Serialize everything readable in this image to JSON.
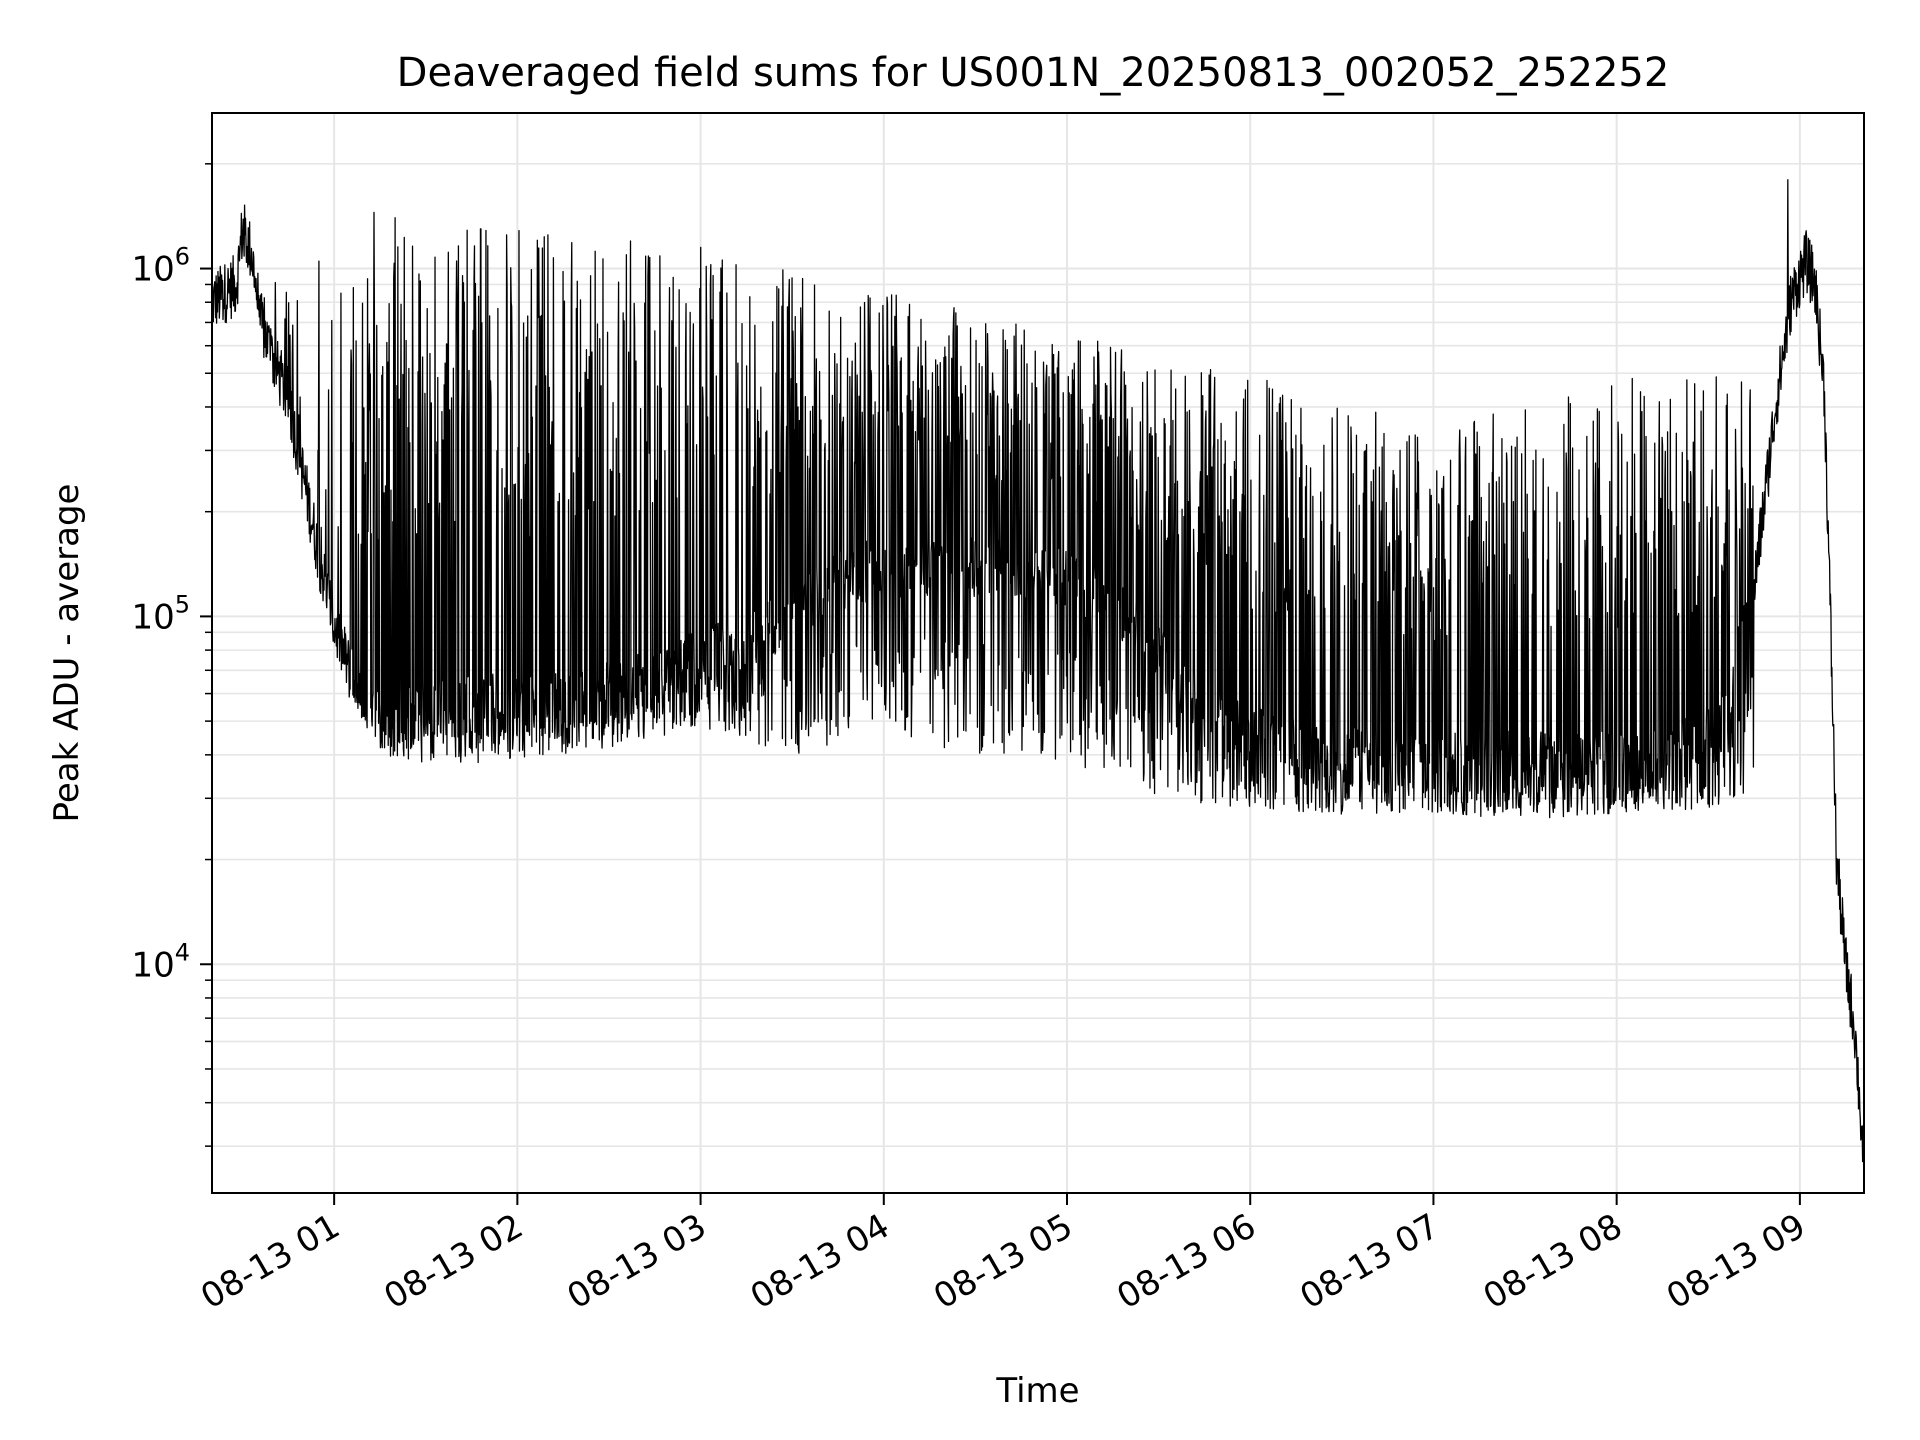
{
  "chart_data": {
    "type": "line",
    "title": "Deaveraged field sums for US001N_20250813_002052_252252",
    "xlabel": "Time",
    "ylabel": "Peak ADU - average",
    "yscale": "log",
    "grid": true,
    "legend": "none",
    "xlim": [
      "08-13 00:20",
      "08-13 09:21"
    ],
    "ylim": [
      2200,
      2800000
    ],
    "x_ticks": [
      {
        "label": "08-13 01",
        "value": "08-13 01:00"
      },
      {
        "label": "08-13 02",
        "value": "08-13 02:00"
      },
      {
        "label": "08-13 03",
        "value": "08-13 03:00"
      },
      {
        "label": "08-13 04",
        "value": "08-13 04:00"
      },
      {
        "label": "08-13 05",
        "value": "08-13 05:00"
      },
      {
        "label": "08-13 06",
        "value": "08-13 06:00"
      },
      {
        "label": "08-13 07",
        "value": "08-13 07:00"
      },
      {
        "label": "08-13 08",
        "value": "08-13 08:00"
      },
      {
        "label": "08-13 09",
        "value": "08-13 09:00"
      }
    ],
    "y_ticks": [
      {
        "value": 10000,
        "base": "10",
        "exp": "4"
      },
      {
        "value": 100000,
        "base": "10",
        "exp": "5"
      },
      {
        "value": 1000000,
        "base": "10",
        "exp": "6"
      }
    ],
    "series": [
      {
        "color": "#000000",
        "base": [
          [
            "08-13 00:20",
            800000
          ],
          [
            "08-13 00:24",
            850000
          ],
          [
            "08-13 00:28",
            900000
          ],
          [
            "08-13 00:30",
            1300000
          ],
          [
            "08-13 00:33",
            1100000
          ],
          [
            "08-13 00:36",
            700000
          ],
          [
            "08-13 00:40",
            550000
          ],
          [
            "08-13 00:45",
            420000
          ],
          [
            "08-13 00:50",
            250000
          ],
          [
            "08-13 00:55",
            150000
          ],
          [
            "08-13 01:00",
            95000
          ],
          [
            "08-13 01:05",
            70000
          ],
          [
            "08-13 01:10",
            55000
          ],
          [
            "08-13 01:20",
            52000
          ],
          [
            "08-13 01:40",
            55000
          ],
          [
            "08-13 02:00",
            56000
          ],
          [
            "08-13 02:30",
            60000
          ],
          [
            "08-13 03:00",
            75000
          ],
          [
            "08-13 03:20",
            90000
          ],
          [
            "08-13 03:40",
            120000
          ],
          [
            "08-13 04:00",
            140000
          ],
          [
            "08-13 04:30",
            140000
          ],
          [
            "08-13 05:00",
            130000
          ],
          [
            "08-13 05:20",
            100000
          ],
          [
            "08-13 05:40",
            60000
          ],
          [
            "08-13 06:00",
            45000
          ],
          [
            "08-13 06:30",
            40000
          ],
          [
            "08-13 07:00",
            38000
          ],
          [
            "08-13 07:30",
            38000
          ],
          [
            "08-13 08:00",
            38000
          ],
          [
            "08-13 08:20",
            40000
          ],
          [
            "08-13 08:35",
            50000
          ],
          [
            "08-13 08:45",
            120000
          ],
          [
            "08-13 08:52",
            400000
          ],
          [
            "08-13 08:57",
            800000
          ],
          [
            "08-13 09:00",
            950000
          ],
          [
            "08-13 09:02",
            1050000
          ],
          [
            "08-13 09:05",
            900000
          ],
          [
            "08-13 09:08",
            450000
          ],
          [
            "08-13 09:10",
            100000
          ],
          [
            "08-13 09:12",
            20000
          ],
          [
            "08-13 09:15",
            10000
          ],
          [
            "08-13 09:18",
            6500
          ],
          [
            "08-13 09:21",
            2600
          ]
        ],
        "upper_envelope": [
          [
            "08-13 00:20",
            1000000
          ],
          [
            "08-13 00:45",
            900000
          ],
          [
            "08-13 01:00",
            900000
          ],
          [
            "08-13 01:20",
            1300000
          ],
          [
            "08-13 02:00",
            1300000
          ],
          [
            "08-13 02:30",
            1200000
          ],
          [
            "08-13 03:00",
            1100000
          ],
          [
            "08-13 03:30",
            1000000
          ],
          [
            "08-13 04:00",
            880000
          ],
          [
            "08-13 04:30",
            750000
          ],
          [
            "08-13 05:00",
            650000
          ],
          [
            "08-13 05:30",
            560000
          ],
          [
            "08-13 06:00",
            500000
          ],
          [
            "08-13 06:30",
            420000
          ],
          [
            "08-13 07:00",
            350000
          ],
          [
            "08-13 07:30",
            420000
          ],
          [
            "08-13 08:00",
            480000
          ],
          [
            "08-13 08:30",
            500000
          ],
          [
            "08-13 08:45",
            500000
          ]
        ],
        "spikes": [
          [
            "08-13 00:55",
            1050000
          ],
          [
            "08-13 01:13",
            1450000
          ],
          [
            "08-13 01:20",
            1400000
          ],
          [
            "08-13 01:48",
            1300000
          ],
          [
            "08-13 02:10",
            1250000
          ],
          [
            "08-13 02:37",
            1200000
          ],
          [
            "08-13 03:00",
            1150000
          ],
          [
            "08-13 08:56",
            1800000
          ]
        ],
        "lower_envelope": [
          [
            "08-13 01:05",
            60000
          ],
          [
            "08-13 01:15",
            40000
          ],
          [
            "08-13 01:30",
            38000
          ],
          [
            "08-13 02:00",
            38000
          ],
          [
            "08-13 02:30",
            42000
          ],
          [
            "08-13 03:00",
            48000
          ],
          [
            "08-13 03:30",
            40000
          ],
          [
            "08-13 04:00",
            45000
          ],
          [
            "08-13 04:30",
            40000
          ],
          [
            "08-13 05:00",
            38000
          ],
          [
            "08-13 05:30",
            30000
          ],
          [
            "08-13 06:00",
            28000
          ],
          [
            "08-13 06:30",
            27000
          ],
          [
            "08-13 07:00",
            27000
          ],
          [
            "08-13 07:30",
            26000
          ],
          [
            "08-13 08:00",
            27000
          ],
          [
            "08-13 08:30",
            28000
          ],
          [
            "08-13 08:45",
            32000
          ]
        ]
      }
    ]
  }
}
